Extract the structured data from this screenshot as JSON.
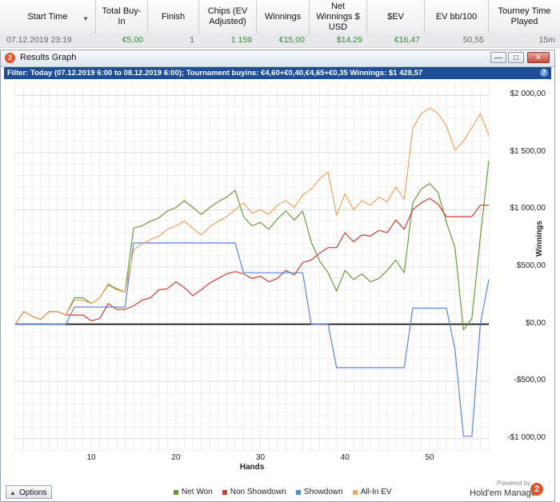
{
  "table": {
    "columns": [
      "Start Time",
      "Total Buy-In",
      "Finish",
      "Chips (EV Adjusted)",
      "Winnings",
      "Net Winnings $ USD",
      "$EV",
      "EV bb/100",
      "Tourney Time Played"
    ],
    "row": [
      "07.12.2019 23:19",
      "€5,00",
      "1",
      "1 159",
      "€15,00",
      "$14,29",
      "€16,47",
      "50,55",
      "15m"
    ]
  },
  "window": {
    "title": "Results Graph",
    "filter": "Filter: Today (07.12.2019 6:00 to 08.12.2019 6:00); Tournament buyins: €4,60+€0,40,€4,65+€0,35 Winnings: $1 428,57",
    "help": "?",
    "app_icon": "2"
  },
  "footer": {
    "options_label": "Options",
    "powered_by": "Powered by",
    "brand": "Hold'em Manager",
    "brand_icon": "2"
  },
  "colors": {
    "net_won": "#6a9a3d",
    "non_showdown": "#d03c2e",
    "showdown": "#5b86d8",
    "allin_ev": "#f2a35f",
    "filter_bar": "#1f4e99"
  },
  "icons": [
    "sort-arrow-icon",
    "app-logo-icon",
    "minimize-icon",
    "maximize-icon",
    "close-icon",
    "help-icon",
    "options-arrow-icon",
    "hm-logo-icon"
  ],
  "chart_data": {
    "type": "line",
    "xlabel": "Hands",
    "ylabel": "Winnings",
    "xlim": [
      1,
      57
    ],
    "ylim": [
      -1100,
      2100
    ],
    "x_ticks": [
      10,
      20,
      30,
      40,
      50
    ],
    "x_tick_labels": [
      "10",
      "20",
      "30",
      "40",
      "50"
    ],
    "y_ticks": [
      -1000,
      -500,
      0,
      500,
      1000,
      1500,
      2000
    ],
    "y_tick_labels": [
      "-$1 000,00",
      "-$500,00",
      "$0,00",
      "$500,00",
      "$1 000,00",
      "$1 500,00",
      "$2 000,00"
    ],
    "grid": true,
    "legend_position": "bottom",
    "series": [
      {
        "name": "Net Won",
        "color": "#6a9a3d",
        "x": [
          1,
          2,
          3,
          4,
          5,
          6,
          7,
          8,
          9,
          10,
          11,
          12,
          13,
          14,
          15,
          16,
          17,
          18,
          19,
          20,
          21,
          22,
          23,
          24,
          25,
          26,
          27,
          28,
          29,
          30,
          31,
          32,
          33,
          34,
          35,
          36,
          37,
          38,
          39,
          40,
          41,
          42,
          43,
          44,
          45,
          46,
          47,
          48,
          49,
          50,
          51,
          52,
          53,
          54,
          55,
          56,
          57
        ],
        "values": [
          0,
          110,
          70,
          40,
          110,
          110,
          80,
          230,
          230,
          180,
          230,
          350,
          310,
          280,
          840,
          860,
          900,
          930,
          990,
          1020,
          1080,
          1020,
          960,
          1020,
          1070,
          1110,
          1170,
          940,
          860,
          890,
          830,
          920,
          990,
          910,
          990,
          720,
          550,
          450,
          290,
          470,
          390,
          440,
          370,
          400,
          470,
          560,
          450,
          1060,
          1180,
          1230,
          1150,
          890,
          670,
          -50,
          50,
          760,
          1430
        ]
      },
      {
        "name": "Non Showdown",
        "color": "#d03c2e",
        "x": [
          1,
          2,
          3,
          4,
          5,
          6,
          7,
          8,
          9,
          10,
          11,
          12,
          13,
          14,
          15,
          16,
          17,
          18,
          19,
          20,
          21,
          22,
          23,
          24,
          25,
          26,
          27,
          28,
          29,
          30,
          31,
          32,
          33,
          34,
          35,
          36,
          37,
          38,
          39,
          40,
          41,
          42,
          43,
          44,
          45,
          46,
          47,
          48,
          49,
          50,
          51,
          52,
          53,
          54,
          55,
          56,
          57
        ],
        "values": [
          0,
          110,
          70,
          40,
          110,
          110,
          80,
          80,
          80,
          30,
          50,
          180,
          130,
          130,
          160,
          210,
          230,
          300,
          310,
          370,
          320,
          250,
          300,
          360,
          400,
          440,
          460,
          440,
          400,
          420,
          370,
          400,
          470,
          430,
          540,
          560,
          620,
          670,
          670,
          800,
          720,
          780,
          770,
          820,
          800,
          910,
          830,
          1000,
          1060,
          1100,
          1050,
          940,
          940,
          940,
          940,
          1040,
          1040
        ]
      },
      {
        "name": "Showdown",
        "color": "#5b86d8",
        "x": [
          1,
          2,
          3,
          4,
          5,
          6,
          7,
          8,
          9,
          10,
          11,
          12,
          13,
          14,
          15,
          16,
          17,
          18,
          19,
          20,
          21,
          22,
          23,
          24,
          25,
          26,
          27,
          28,
          29,
          30,
          31,
          32,
          33,
          34,
          35,
          36,
          37,
          38,
          39,
          40,
          41,
          42,
          43,
          44,
          45,
          46,
          47,
          48,
          49,
          50,
          51,
          52,
          53,
          54,
          55,
          56,
          57
        ],
        "values": [
          0,
          0,
          0,
          0,
          0,
          0,
          0,
          150,
          150,
          150,
          150,
          150,
          150,
          150,
          710,
          710,
          710,
          710,
          710,
          710,
          710,
          710,
          710,
          710,
          710,
          710,
          710,
          450,
          450,
          450,
          450,
          450,
          450,
          450,
          450,
          0,
          0,
          0,
          -380,
          -380,
          -380,
          -380,
          -380,
          -380,
          -380,
          -380,
          -380,
          140,
          140,
          140,
          140,
          140,
          -220,
          -980,
          -980,
          0,
          390
        ]
      },
      {
        "name": "All-In EV",
        "color": "#f2a35f",
        "x": [
          1,
          2,
          3,
          4,
          5,
          6,
          7,
          8,
          9,
          10,
          11,
          12,
          13,
          14,
          15,
          16,
          17,
          18,
          19,
          20,
          21,
          22,
          23,
          24,
          25,
          26,
          27,
          28,
          29,
          30,
          31,
          32,
          33,
          34,
          35,
          36,
          37,
          38,
          39,
          40,
          41,
          42,
          43,
          44,
          45,
          46,
          47,
          48,
          49,
          50,
          51,
          52,
          53,
          54,
          55,
          56,
          57
        ],
        "values": [
          0,
          110,
          70,
          40,
          110,
          110,
          80,
          210,
          210,
          180,
          230,
          340,
          300,
          280,
          650,
          700,
          740,
          770,
          830,
          860,
          900,
          840,
          780,
          850,
          900,
          940,
          1000,
          1060,
          970,
          1000,
          960,
          1040,
          1080,
          1020,
          1130,
          1180,
          1270,
          1330,
          950,
          1140,
          1000,
          1080,
          1040,
          1110,
          1070,
          1200,
          1090,
          1710,
          1840,
          1890,
          1840,
          1730,
          1520,
          1600,
          1720,
          1840,
          1650
        ]
      }
    ]
  }
}
